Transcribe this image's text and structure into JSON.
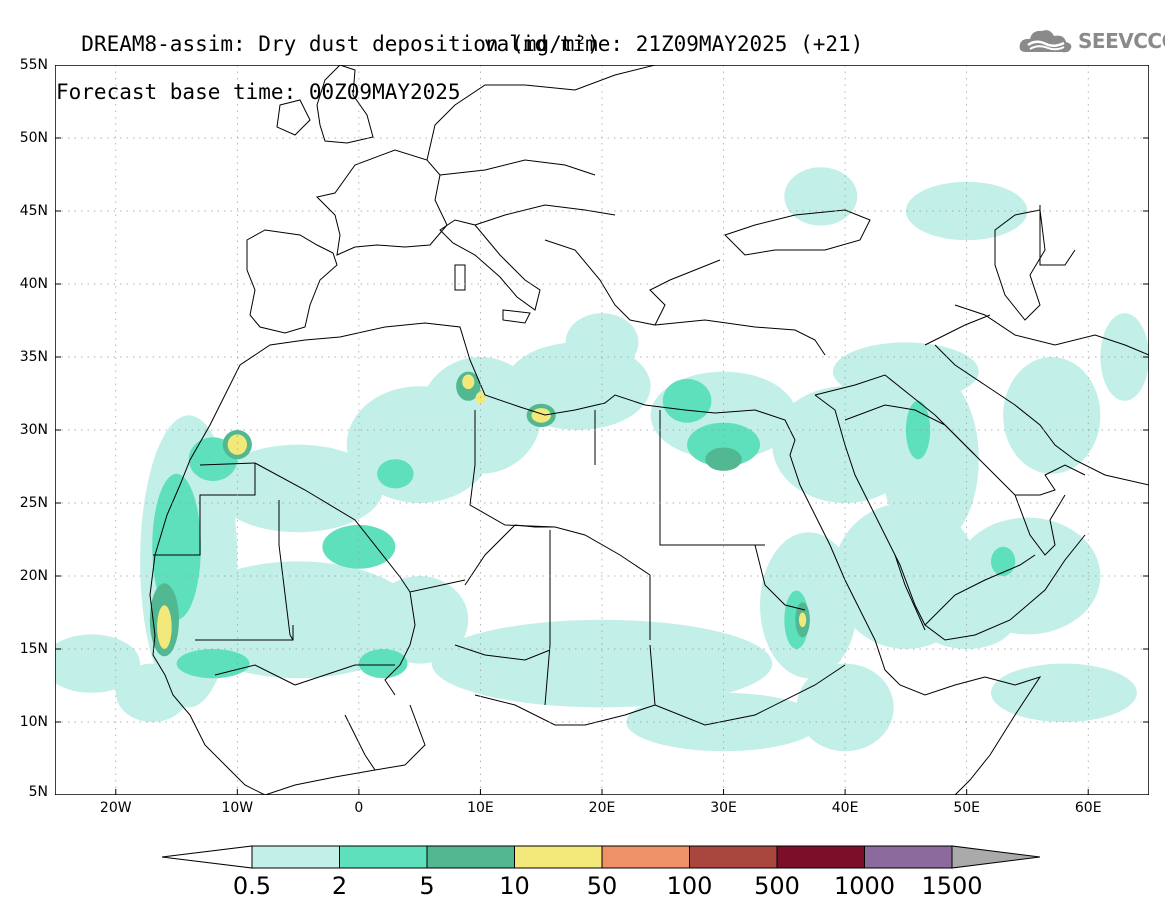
{
  "title": {
    "line1": "DREAM8-assim: Dry dust deposition (mg/m²)",
    "line2": "Forecast base time: 00Z09MAY2025",
    "valid": "valid time: 21Z09MAY2025 (+21)"
  },
  "logo": {
    "text": "SEEVCCC",
    "icon": "cloud-logo-icon"
  },
  "axes": {
    "lon_range": [
      -25,
      65
    ],
    "lat_range": [
      5,
      55
    ],
    "lat_labels": [
      {
        "lat": 55,
        "text": "55N"
      },
      {
        "lat": 50,
        "text": "50N"
      },
      {
        "lat": 45,
        "text": "45N"
      },
      {
        "lat": 40,
        "text": "40N"
      },
      {
        "lat": 35,
        "text": "35N"
      },
      {
        "lat": 30,
        "text": "30N"
      },
      {
        "lat": 25,
        "text": "25N"
      },
      {
        "lat": 20,
        "text": "20N"
      },
      {
        "lat": 15,
        "text": "15N"
      },
      {
        "lat": 10,
        "text": "10N"
      },
      {
        "lat": 5,
        "text": "5N"
      }
    ],
    "lon_labels": [
      {
        "lon": -20,
        "text": "20W"
      },
      {
        "lon": -10,
        "text": "10W"
      },
      {
        "lon": 0,
        "text": "0"
      },
      {
        "lon": 10,
        "text": "10E"
      },
      {
        "lon": 20,
        "text": "20E"
      },
      {
        "lon": 30,
        "text": "30E"
      },
      {
        "lon": 40,
        "text": "40E"
      },
      {
        "lon": 50,
        "text": "50E"
      },
      {
        "lon": 60,
        "text": "60E"
      }
    ]
  },
  "legend": {
    "labels": [
      "0.5",
      "2",
      "5",
      "10",
      "50",
      "100",
      "500",
      "1000",
      "1500"
    ],
    "colors": [
      "#ffffff",
      "#c2efe8",
      "#5fe0bc",
      "#52b891",
      "#f3e97a",
      "#ee9068",
      "#a9473f",
      "#7b0f2a",
      "#8d6a9e",
      "#aaaaaa"
    ]
  },
  "dust_colors": {
    "c1": "#c2efe8",
    "c2": "#5fe0bc",
    "c3": "#52b891",
    "c4": "#f3e97a"
  },
  "map_regions": [
    {
      "level": 1,
      "lon": -14,
      "lat": 21,
      "rlon": 4,
      "rlat": 10
    },
    {
      "level": 1,
      "lon": -5,
      "lat": 26,
      "rlon": 7,
      "rlat": 3
    },
    {
      "level": 1,
      "lon": 5,
      "lat": 29,
      "rlon": 6,
      "rlat": 4
    },
    {
      "level": 1,
      "lon": 10,
      "lat": 31,
      "rlon": 5,
      "rlat": 4
    },
    {
      "level": 1,
      "lon": 18,
      "lat": 33,
      "rlon": 6,
      "rlat": 3
    },
    {
      "level": 1,
      "lon": 30,
      "lat": 31,
      "rlon": 6,
      "rlat": 3
    },
    {
      "level": 1,
      "lon": 40,
      "lat": 29,
      "rlon": 6,
      "rlat": 4
    },
    {
      "level": 1,
      "lon": 47,
      "lat": 28,
      "rlon": 4,
      "rlat": 6
    },
    {
      "level": 1,
      "lon": 37,
      "lat": 18,
      "rlon": 4,
      "rlat": 5
    },
    {
      "level": 1,
      "lon": 45,
      "lat": 20,
      "rlon": 6,
      "rlat": 5
    },
    {
      "level": 1,
      "lon": 55,
      "lat": 20,
      "rlon": 6,
      "rlat": 4
    },
    {
      "level": 1,
      "lon": 20,
      "lat": 14,
      "rlon": 14,
      "rlat": 3
    },
    {
      "level": 1,
      "lon": -5,
      "lat": 17,
      "rlon": 10,
      "rlat": 4
    },
    {
      "level": 1,
      "lon": 5,
      "lat": 17,
      "rlon": 4,
      "rlat": 3
    },
    {
      "level": 1,
      "lon": -22,
      "lat": 14,
      "rlon": 4,
      "rlat": 2
    },
    {
      "level": 1,
      "lon": 20,
      "lat": 36,
      "rlon": 3,
      "rlat": 2
    },
    {
      "level": 1,
      "lon": 45,
      "lat": 34,
      "rlon": 6,
      "rlat": 2
    },
    {
      "level": 1,
      "lon": 57,
      "lat": 31,
      "rlon": 4,
      "rlat": 4
    },
    {
      "level": 1,
      "lon": 63,
      "lat": 35,
      "rlon": 2,
      "rlat": 3
    },
    {
      "level": 1,
      "lon": 50,
      "lat": 45,
      "rlon": 5,
      "rlat": 2
    },
    {
      "level": 1,
      "lon": 38,
      "lat": 46,
      "rlon": 3,
      "rlat": 2
    },
    {
      "level": 1,
      "lon": 30,
      "lat": 10,
      "rlon": 8,
      "rlat": 2
    },
    {
      "level": 1,
      "lon": 40,
      "lat": 11,
      "rlon": 4,
      "rlat": 3
    },
    {
      "level": 1,
      "lon": 58,
      "lat": 12,
      "rlon": 6,
      "rlat": 2
    },
    {
      "level": 1,
      "lon": 50,
      "lat": 17,
      "rlon": 4,
      "rlat": 2
    },
    {
      "level": 1,
      "lon": -17,
      "lat": 12,
      "rlon": 3,
      "rlat": 2
    },
    {
      "level": 2,
      "lon": -15,
      "lat": 22,
      "rlon": 2,
      "rlat": 5
    },
    {
      "level": 2,
      "lon": -12,
      "lat": 28,
      "rlon": 2,
      "rlat": 1.5
    },
    {
      "level": 2,
      "lon": 3,
      "lat": 27,
      "rlon": 1.5,
      "rlat": 1
    },
    {
      "level": 2,
      "lon": 0,
      "lat": 22,
      "rlon": 3,
      "rlat": 1.5
    },
    {
      "level": 2,
      "lon": 30,
      "lat": 29,
      "rlon": 3,
      "rlat": 1.5
    },
    {
      "level": 2,
      "lon": 27,
      "lat": 32,
      "rlon": 2,
      "rlat": 1.5
    },
    {
      "level": 2,
      "lon": 36,
      "lat": 17,
      "rlon": 1,
      "rlat": 2
    },
    {
      "level": 2,
      "lon": -12,
      "lat": 14,
      "rlon": 3,
      "rlat": 1
    },
    {
      "level": 2,
      "lon": 2,
      "lat": 14,
      "rlon": 2,
      "rlat": 1
    },
    {
      "level": 2,
      "lon": 46,
      "lat": 30,
      "rlon": 1,
      "rlat": 2
    },
    {
      "level": 2,
      "lon": 53,
      "lat": 21,
      "rlon": 1,
      "rlat": 1
    },
    {
      "level": 3,
      "lon": -16,
      "lat": 17,
      "rlon": 1.2,
      "rlat": 2.5
    },
    {
      "level": 3,
      "lon": 30,
      "lat": 28,
      "rlon": 1.5,
      "rlat": 0.8
    },
    {
      "level": 3,
      "lon": 36.5,
      "lat": 17,
      "rlon": 0.6,
      "rlat": 1.2
    },
    {
      "level": 3,
      "lon": -10,
      "lat": 29,
      "rlon": 1.2,
      "rlat": 1
    },
    {
      "level": 3,
      "lon": 9,
      "lat": 33,
      "rlon": 1,
      "rlat": 1
    },
    {
      "level": 3,
      "lon": 15,
      "lat": 31,
      "rlon": 1.2,
      "rlat": 0.8
    },
    {
      "level": 4,
      "lon": -16,
      "lat": 16.5,
      "rlon": 0.6,
      "rlat": 1.5
    },
    {
      "level": 4,
      "lon": -10,
      "lat": 29,
      "rlon": 0.8,
      "rlat": 0.7
    },
    {
      "level": 4,
      "lon": 9,
      "lat": 33.3,
      "rlon": 0.5,
      "rlat": 0.5
    },
    {
      "level": 4,
      "lon": 10,
      "lat": 32.2,
      "rlon": 0.4,
      "rlat": 0.4
    },
    {
      "level": 4,
      "lon": 15,
      "lat": 31,
      "rlon": 0.8,
      "rlat": 0.5
    },
    {
      "level": 4,
      "lon": 36.5,
      "lat": 17,
      "rlon": 0.3,
      "rlat": 0.5
    }
  ]
}
